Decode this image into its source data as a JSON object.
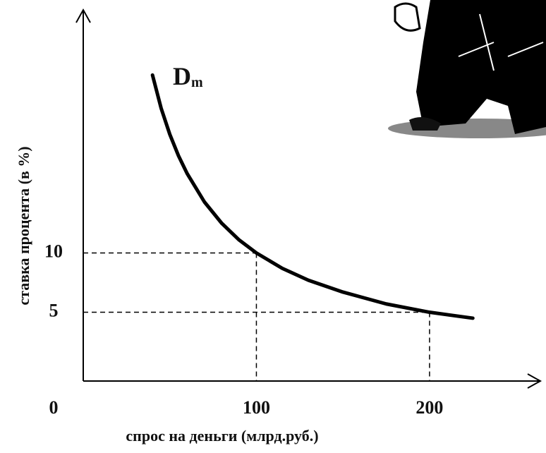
{
  "chart_data": {
    "type": "line",
    "xlabel": "спрос на деньги (млрд.руб.)",
    "ylabel": "ставка процента (в %)",
    "curve_label": "D",
    "curve_label_sub": "m",
    "color": "#000000",
    "x": [
      40,
      45,
      50,
      55,
      60,
      70,
      80,
      90,
      100,
      115,
      130,
      150,
      175,
      200,
      225
    ],
    "values": [
      25,
      22.2,
      20,
      18.2,
      16.7,
      14.3,
      12.5,
      11.1,
      10,
      8.7,
      7.7,
      6.7,
      5.7,
      5,
      4.5
    ],
    "xlim": [
      0,
      264
    ],
    "ylim": [
      -0.8,
      30.5
    ],
    "xticks": [
      0,
      100,
      200
    ],
    "yticks": [
      5,
      10
    ],
    "guides": [
      {
        "x": 100,
        "y": 10
      },
      {
        "x": 200,
        "y": 5
      }
    ]
  }
}
